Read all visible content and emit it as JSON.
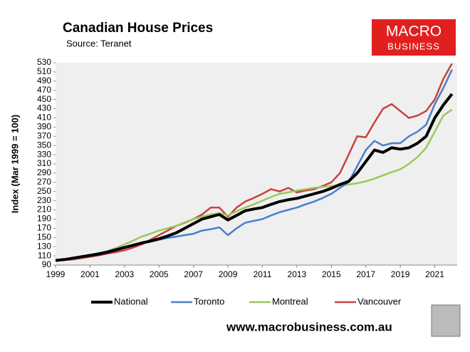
{
  "chart_data": {
    "type": "line",
    "title": "Canadian House Prices",
    "subtitle": "Source: Teranet",
    "y_label": "Index (Mar 1999 = 100)",
    "x": [
      1999,
      1999.5,
      2000,
      2000.5,
      2001,
      2001.5,
      2002,
      2002.5,
      2003,
      2003.5,
      2004,
      2004.5,
      2005,
      2005.5,
      2006,
      2006.5,
      2007,
      2007.5,
      2008,
      2008.5,
      2009,
      2009.5,
      2010,
      2010.5,
      2011,
      2011.5,
      2012,
      2012.5,
      2013,
      2013.5,
      2014,
      2014.5,
      2015,
      2015.5,
      2016,
      2016.5,
      2017,
      2017.5,
      2018,
      2018.5,
      2019,
      2019.5,
      2020,
      2020.5,
      2021,
      2021.5,
      2022
    ],
    "series": [
      {
        "name": "National",
        "color": "#000000",
        "width": 4,
        "values": [
          100,
          102,
          105,
          108,
          111,
          114,
          118,
          123,
          128,
          133,
          138,
          142,
          147,
          153,
          160,
          170,
          180,
          190,
          195,
          200,
          188,
          198,
          208,
          212,
          215,
          222,
          228,
          232,
          235,
          240,
          245,
          250,
          257,
          265,
          272,
          290,
          315,
          340,
          335,
          345,
          342,
          345,
          355,
          370,
          410,
          438,
          462
        ]
      },
      {
        "name": "Toronto",
        "color": "#4a7fc8",
        "width": 2.5,
        "values": [
          100,
          102,
          105,
          108,
          112,
          116,
          120,
          125,
          130,
          134,
          138,
          141,
          145,
          149,
          152,
          155,
          158,
          165,
          168,
          172,
          155,
          170,
          182,
          186,
          190,
          198,
          205,
          210,
          215,
          222,
          228,
          236,
          245,
          258,
          270,
          305,
          340,
          360,
          350,
          355,
          355,
          370,
          380,
          395,
          440,
          475,
          515
        ]
      },
      {
        "name": "Montreal",
        "color": "#9bc85a",
        "width": 2.5,
        "values": [
          100,
          102,
          104,
          107,
          110,
          115,
          120,
          127,
          135,
          143,
          152,
          158,
          165,
          170,
          175,
          183,
          190,
          195,
          200,
          203,
          198,
          207,
          215,
          222,
          230,
          238,
          245,
          248,
          252,
          255,
          258,
          260,
          262,
          263,
          265,
          268,
          272,
          278,
          285,
          292,
          298,
          310,
          325,
          345,
          380,
          415,
          428
        ]
      },
      {
        "name": "Vancouver",
        "color": "#c8423e",
        "width": 2.5,
        "values": [
          100,
          101,
          102,
          105,
          108,
          111,
          115,
          118,
          122,
          128,
          135,
          145,
          155,
          165,
          175,
          182,
          190,
          200,
          215,
          215,
          195,
          215,
          228,
          236,
          245,
          255,
          250,
          258,
          248,
          252,
          255,
          262,
          270,
          290,
          330,
          370,
          368,
          400,
          430,
          440,
          425,
          410,
          415,
          425,
          450,
          495,
          528
        ]
      }
    ],
    "xlim": [
      1999,
      2022.3
    ],
    "xticks": [
      1999,
      2001,
      2003,
      2005,
      2007,
      2009,
      2011,
      2013,
      2015,
      2017,
      2019,
      2021
    ],
    "ylim": [
      90,
      530
    ],
    "yticks": [
      90,
      110,
      130,
      150,
      170,
      190,
      210,
      230,
      250,
      270,
      290,
      310,
      330,
      350,
      370,
      390,
      410,
      430,
      450,
      470,
      490,
      510,
      530
    ],
    "grid": false,
    "plot_background": "#efefef"
  },
  "logo": {
    "line1": "MACRO",
    "line2": "BUSINESS"
  },
  "footer": "www.macrobusiness.com.au"
}
